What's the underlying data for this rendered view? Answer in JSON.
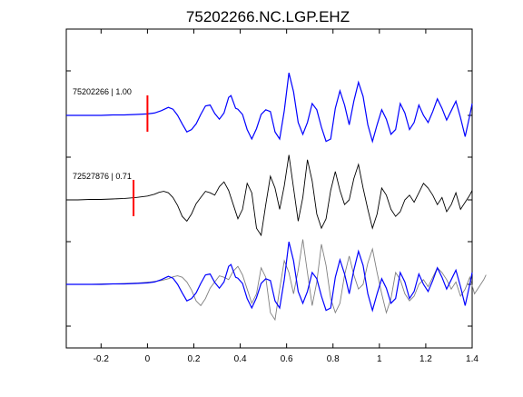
{
  "chart_data": {
    "type": "line",
    "title": "75202266.NC.LGP.EHZ",
    "xlabel": "",
    "ylabel": "",
    "xlim": [
      -0.35,
      1.4
    ],
    "x_ticks": [
      -0.2,
      0,
      0.2,
      0.4,
      0.6,
      0.8,
      1,
      1.2,
      1.4
    ],
    "x_tick_labels": [
      "-0.2",
      "0",
      "0.2",
      "0.4",
      "0.6",
      "0.8",
      "1",
      "1.2",
      "1.4"
    ],
    "grid": false,
    "legend": "none",
    "colors": {
      "primary": "#0000ff",
      "reference": "#000000",
      "overlay": "#808080",
      "pick": "#ff0000",
      "frame": "#000000"
    },
    "traces": [
      {
        "label": "75202266 | 1.00",
        "color": "#0000ff",
        "pick_time": 0.0,
        "x": [
          -0.35,
          -0.3,
          -0.25,
          -0.2,
          -0.15,
          -0.1,
          -0.05,
          0,
          0.03,
          0.06,
          0.09,
          0.11,
          0.13,
          0.15,
          0.17,
          0.19,
          0.21,
          0.23,
          0.25,
          0.27,
          0.29,
          0.31,
          0.33,
          0.35,
          0.36,
          0.38,
          0.39,
          0.41,
          0.43,
          0.45,
          0.47,
          0.49,
          0.51,
          0.53,
          0.55,
          0.57,
          0.59,
          0.61,
          0.63,
          0.65,
          0.67,
          0.69,
          0.71,
          0.73,
          0.75,
          0.77,
          0.79,
          0.81,
          0.83,
          0.85,
          0.87,
          0.89,
          0.91,
          0.93,
          0.95,
          0.97,
          0.99,
          1.01,
          1.03,
          1.05,
          1.07,
          1.09,
          1.11,
          1.13,
          1.15,
          1.17,
          1.19,
          1.21,
          1.23,
          1.25,
          1.27,
          1.29,
          1.31,
          1.33,
          1.35,
          1.37,
          1.39,
          1.4
        ],
        "y": [
          0,
          0,
          0,
          0,
          0.01,
          0.01,
          0.02,
          0.03,
          0.05,
          0.1,
          0.17,
          0.13,
          0,
          -0.18,
          -0.35,
          -0.3,
          -0.18,
          0.02,
          0.2,
          0.22,
          0.04,
          -0.08,
          0.05,
          0.38,
          0.42,
          0.15,
          0.13,
          0.02,
          -0.3,
          -0.5,
          -0.28,
          0.02,
          0.12,
          0.08,
          -0.35,
          -0.5,
          0.1,
          0.9,
          0.5,
          -0.15,
          -0.4,
          -0.15,
          0.25,
          0.12,
          -0.25,
          -0.55,
          -0.5,
          0.15,
          0.52,
          0.22,
          -0.2,
          0.3,
          0.7,
          0.4,
          -0.2,
          -0.55,
          -0.2,
          0.12,
          -0.08,
          -0.4,
          -0.3,
          0.25,
          0.05,
          -0.3,
          -0.15,
          0.22,
          0.0,
          -0.15,
          0.08,
          0.35,
          0.15,
          -0.1,
          0.1,
          0.3,
          -0.05,
          -0.45,
          0.0,
          0.25
        ],
        "marker": {
          "label": "75202266 | 1.00",
          "pick_time": 0.0
        }
      },
      {
        "label": "72527876 | 0.71",
        "color": "#000000",
        "pick_time": -0.06,
        "x": [
          -0.35,
          -0.3,
          -0.25,
          -0.2,
          -0.15,
          -0.1,
          -0.05,
          0,
          0.03,
          0.05,
          0.07,
          0.09,
          0.11,
          0.13,
          0.15,
          0.17,
          0.19,
          0.21,
          0.23,
          0.25,
          0.27,
          0.29,
          0.31,
          0.33,
          0.35,
          0.37,
          0.39,
          0.41,
          0.43,
          0.45,
          0.47,
          0.49,
          0.51,
          0.53,
          0.55,
          0.57,
          0.59,
          0.61,
          0.63,
          0.65,
          0.67,
          0.69,
          0.71,
          0.73,
          0.75,
          0.77,
          0.79,
          0.81,
          0.83,
          0.85,
          0.87,
          0.89,
          0.91,
          0.93,
          0.95,
          0.97,
          0.99,
          1.01,
          1.03,
          1.05,
          1.07,
          1.09,
          1.11,
          1.13,
          1.15,
          1.17,
          1.19,
          1.21,
          1.23,
          1.25,
          1.27,
          1.29,
          1.31,
          1.33,
          1.35,
          1.37,
          1.39,
          1.4
        ],
        "y": [
          0,
          0,
          0.01,
          0.01,
          0.02,
          0.03,
          0.05,
          0.08,
          0.12,
          0.16,
          0.18,
          0.15,
          0.05,
          -0.12,
          -0.35,
          -0.45,
          -0.3,
          -0.08,
          0.05,
          0.18,
          0.15,
          0.1,
          0.28,
          0.38,
          0.2,
          -0.1,
          -0.4,
          -0.2,
          0.35,
          0.15,
          -0.6,
          -0.75,
          -0.1,
          0.5,
          0.25,
          -0.2,
          0.3,
          0.95,
          0.25,
          -0.45,
          0.05,
          0.85,
          0.4,
          -0.3,
          -0.6,
          -0.4,
          0.2,
          0.6,
          0.2,
          -0.1,
          0.0,
          0.45,
          0.75,
          0.25,
          -0.2,
          -0.6,
          -0.3,
          0.25,
          0.1,
          -0.2,
          -0.35,
          -0.25,
          0.0,
          0.1,
          -0.05,
          0.15,
          0.35,
          0.25,
          0.1,
          -0.1,
          0.05,
          -0.25,
          -0.1,
          0.15,
          -0.2,
          -0.05,
          0.1,
          0.2
        ],
        "marker": {
          "label": "72527876 | 0.71",
          "pick_time": -0.06
        }
      },
      {
        "label": "",
        "color": "#0000ff",
        "overlay_color": "#808080"
      }
    ]
  }
}
